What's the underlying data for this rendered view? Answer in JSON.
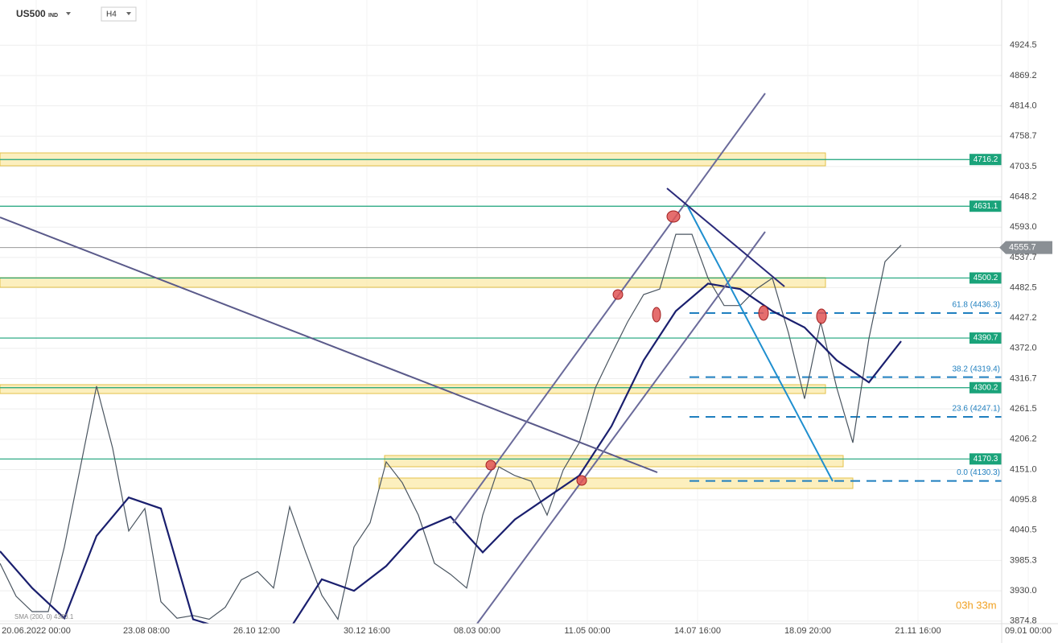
{
  "chart_data": {
    "type": "line",
    "symbol": "US500",
    "symbol_suffix": "IND",
    "timeframe": "H4",
    "indicator_label": "SMA (200, 0) 4383.1",
    "countdown": "03h 33m",
    "xtick_labels": [
      "20.06.2022 00:00",
      "23.08 08:00",
      "26.10 12:00",
      "30.12 16:00",
      "08.03 00:00",
      "11.05 00:00",
      "14.07 16:00",
      "18.09 20:00",
      "21.11 16:00",
      "09.01 00:00"
    ],
    "series": [
      {
        "name": "US500",
        "color": "#4a5560",
        "values": [
          3980,
          3920,
          3892,
          3892,
          4010,
          4156,
          4303,
          4190,
          4039,
          4080,
          3910,
          3880,
          3885,
          3878,
          3900,
          3950,
          3965,
          3935,
          4083,
          4000,
          3922,
          3878,
          4010,
          4054,
          4165,
          4127,
          4068,
          3980,
          3960,
          3935,
          4068,
          4156,
          4140,
          4130,
          4068,
          4150,
          4200,
          4300,
          4361,
          4420,
          4470,
          4480,
          4580,
          4580,
          4500,
          4450,
          4450,
          4480,
          4500,
          4400,
          4280,
          4420,
          4300,
          4200,
          4390,
          4530,
          4560
        ]
      },
      {
        "name": "SMA",
        "color": "#1a1f6e",
        "values": [
          4002,
          3935,
          3880,
          4030,
          4100,
          4080,
          3878,
          3860,
          3850,
          3860,
          3951,
          3930,
          3975,
          4040,
          4065,
          4000,
          4060,
          4100,
          4140,
          4230,
          4350,
          4440,
          4490,
          4480,
          4440,
          4410,
          4350,
          4310,
          4385
        ]
      }
    ],
    "levels": [
      4716.2,
      4631.1,
      4500.2,
      4390.7,
      4300.2,
      4170.3
    ],
    "level_color": "#1aa37a",
    "last_price": 4555.7,
    "fib_levels": [
      {
        "value": 4436.3,
        "label": "61.8 (4436.3)"
      },
      {
        "value": 4319.4,
        "label": "38.2 (4319.4)"
      },
      {
        "value": 4247.1,
        "label": "23.6 (4247.1)"
      },
      {
        "value": 4130.3,
        "label": "0.0 (4130.3)"
      }
    ],
    "fib_color": "#1f7fbf",
    "ylim": [
      3870,
      5007
    ],
    "yticks": [
      4924.5,
      4869.2,
      {
        "value": 4814.0,
        "label": "4814.0"
      },
      4758.7,
      4703.5,
      4648.2,
      {
        "value": 4593.0,
        "label": "4593.0"
      },
      4537.7,
      4482.5,
      4427.2,
      {
        "value": 4372.0,
        "label": "4372.0"
      },
      4316.7,
      4261.5,
      4206.2,
      {
        "value": 4151.0,
        "label": "4151.0"
      },
      4095.8,
      4040.5,
      3985.3,
      {
        "value": 3930.0,
        "label": "3930.0"
      },
      3874.8
    ],
    "grid": true
  }
}
